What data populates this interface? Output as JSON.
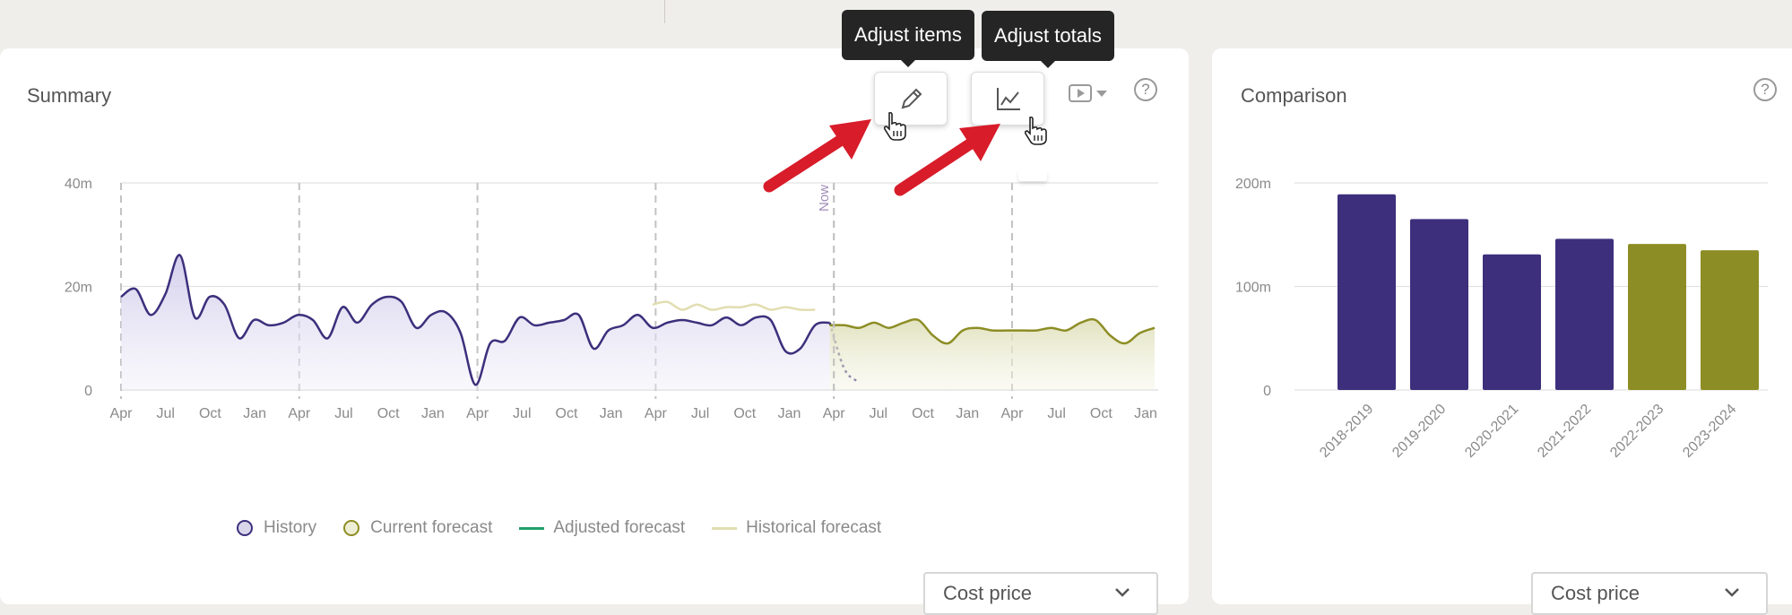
{
  "summary": {
    "title": "Summary",
    "help": "?",
    "tooltips": {
      "adjust_items": "Adjust items",
      "adjust_totals": "Adjust totals"
    },
    "now_label": "Now",
    "y_ticks": [
      "0",
      "20m",
      "40m"
    ],
    "x_ticks": [
      "Apr",
      "Jul",
      "Oct",
      "Jan",
      "Apr",
      "Jul",
      "Oct",
      "Jan",
      "Apr",
      "Jul",
      "Oct",
      "Jan",
      "Apr",
      "Jul",
      "Oct",
      "Jan",
      "Apr",
      "Jul",
      "Oct",
      "Jan",
      "Apr",
      "Jul",
      "Oct",
      "Jan"
    ],
    "legend": {
      "history": "History",
      "current_forecast": "Current forecast",
      "adjusted_forecast": "Adjusted forecast",
      "historical_forecast": "Historical forecast"
    },
    "select_value": "Cost price",
    "icons": {
      "edit": "pencil-icon",
      "totals": "line-chart-icon",
      "play": "play-icon"
    }
  },
  "comparison": {
    "title": "Comparison",
    "help": "?",
    "select_value": "Cost price"
  },
  "colors": {
    "history": "#3d2f7c",
    "forecast": "#8d8d25",
    "adjusted": "#22a06b",
    "historical_forecast": "#e2ddb0",
    "arrow": "#e0202f"
  },
  "chart_data": [
    {
      "type": "area",
      "ylim": [
        0,
        40
      ],
      "y_unit": "m",
      "x_tick_labels": [
        "Apr",
        "Jul",
        "Oct",
        "Jan",
        "Apr",
        "Jul",
        "Oct",
        "Jan",
        "Apr",
        "Jul",
        "Oct",
        "Jan",
        "Apr",
        "Jul",
        "Oct",
        "Jan",
        "Apr",
        "Jul",
        "Oct",
        "Jan",
        "Apr",
        "Jul",
        "Oct",
        "Jan"
      ],
      "series": [
        {
          "name": "History",
          "values": [
            18,
            19.5,
            14.5,
            18.5,
            26,
            14,
            18,
            16.5,
            10,
            13.5,
            12.5,
            13,
            14.5,
            13.5,
            10,
            16,
            13,
            16.5,
            18,
            17,
            12,
            14.5,
            15,
            11,
            1,
            9,
            9.5,
            14,
            12.5,
            13,
            13.5,
            14.5,
            8,
            11.5,
            12.5,
            14.5,
            12,
            13,
            13.5,
            13,
            12.5,
            14,
            12.5,
            14,
            13.5,
            7.5,
            8,
            12.5,
            13,
            4,
            1.5
          ]
        },
        {
          "name": "Historical forecast",
          "start_index": 36,
          "values": [
            16.5,
            17,
            15.5,
            16.5,
            15.5,
            16,
            16,
            16.5,
            15.5,
            16,
            15.5,
            15.5
          ]
        },
        {
          "name": "Current forecast",
          "start_index": 48,
          "values": [
            12.5,
            12.5,
            12,
            13,
            12,
            13,
            13.5,
            10.5,
            9,
            11.5,
            12,
            11.5,
            11.5,
            11.5,
            11.5,
            12,
            11.5,
            13,
            13.5,
            10.5,
            9,
            11,
            12
          ]
        }
      ]
    },
    {
      "type": "bar",
      "ylim": [
        0,
        200
      ],
      "y_ticks": [
        "0",
        "100m",
        "200m"
      ],
      "categories": [
        "2018-2019",
        "2019-2020",
        "2020-2021",
        "2021-2022",
        "2022-2023",
        "2023-2024"
      ],
      "values": [
        189,
        165,
        131,
        146,
        141,
        135
      ],
      "bar_colors": [
        "#3d2f7c",
        "#3d2f7c",
        "#3d2f7c",
        "#3d2f7c",
        "#8d8d25",
        "#8d8d25"
      ]
    }
  ]
}
